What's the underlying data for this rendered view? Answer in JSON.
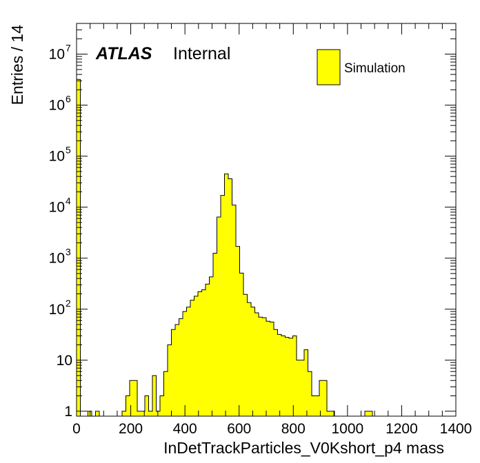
{
  "chart_data": {
    "type": "bar",
    "subtype": "histogram",
    "title": "",
    "xlabel": "InDetTrackParticles_V0Kshort_p4 mass",
    "ylabel": "Entries / 14",
    "xlim": [
      0,
      1400
    ],
    "ylim": [
      0.8,
      40000000
    ],
    "yscale": "log",
    "bin_width": 14,
    "x_ticks": [
      0,
      200,
      400,
      600,
      800,
      1000,
      1200,
      1400
    ],
    "x_tick_labels": [
      "0",
      "200",
      "400",
      "600",
      "800",
      "1000",
      "1200",
      "1400"
    ],
    "y_ticks": [
      1,
      10,
      100,
      1000,
      10000,
      100000,
      1000000,
      10000000
    ],
    "y_tick_labels": [
      {
        "base": "1",
        "exp": ""
      },
      {
        "base": "10",
        "exp": ""
      },
      {
        "base": "10",
        "exp": "2"
      },
      {
        "base": "10",
        "exp": "3"
      },
      {
        "base": "10",
        "exp": "4"
      },
      {
        "base": "10",
        "exp": "5"
      },
      {
        "base": "10",
        "exp": "6"
      },
      {
        "base": "10",
        "exp": "7"
      }
    ],
    "grid": false,
    "legend_position": "top-right",
    "series": [
      {
        "name": "Simulation",
        "color": "#ffff00",
        "edge_color": "#000000",
        "values": [
          3200000,
          0,
          0,
          1,
          0,
          1,
          0,
          0,
          0,
          0,
          0,
          0,
          1,
          2,
          4,
          4,
          1,
          1,
          2,
          1,
          5,
          1,
          2,
          6,
          20,
          40,
          50,
          65,
          90,
          110,
          150,
          180,
          220,
          240,
          310,
          430,
          1250,
          6400,
          17000,
          45000,
          36000,
          11000,
          1700,
          510,
          195,
          135,
          110,
          85,
          70,
          68,
          58,
          56,
          40,
          32,
          30,
          28,
          27,
          30,
          10,
          10,
          16,
          6,
          2,
          2,
          4,
          4,
          1,
          1,
          0,
          0,
          0,
          0,
          0,
          0,
          0,
          0,
          1,
          1,
          0,
          0,
          0,
          0,
          0,
          0,
          0,
          0,
          0,
          0,
          0,
          0,
          0,
          0,
          0,
          0,
          0,
          0,
          0,
          0,
          0,
          0
        ]
      }
    ],
    "annotations": [
      {
        "text": "ATLAS",
        "style": "bold-italic"
      },
      {
        "text": "Internal",
        "style": "normal"
      }
    ]
  },
  "labels": {
    "atlas": "ATLAS",
    "internal": "Internal",
    "legend": "Simulation",
    "xlabel": "InDetTrackParticles_V0Kshort_p4 mass",
    "ylabel": "Entries / 14"
  }
}
